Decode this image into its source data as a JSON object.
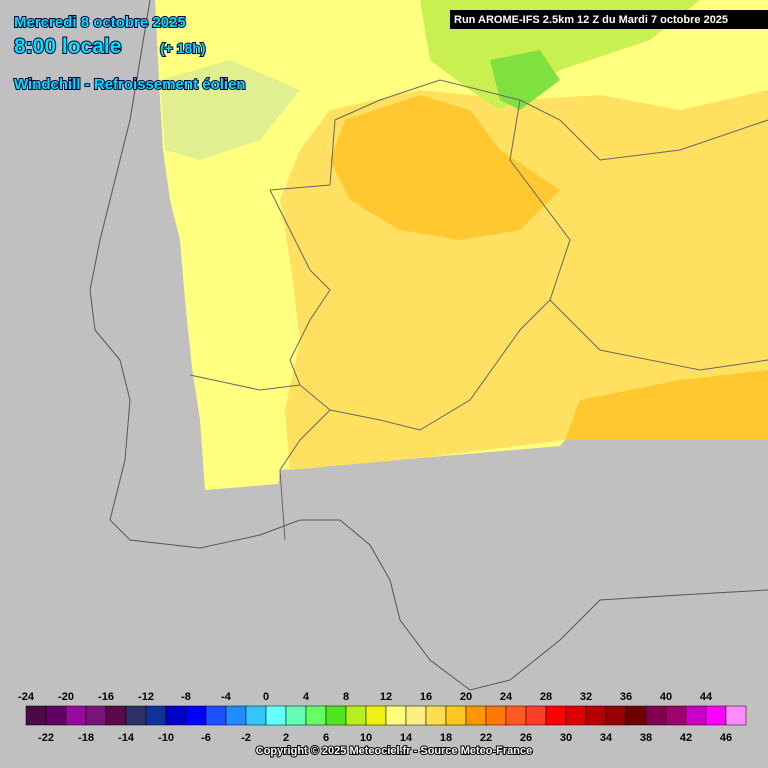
{
  "header": {
    "date": "Mercredi 8 octobre 2025",
    "time": "8:00 locale",
    "lead": "(+ 18h)",
    "parameter": "Windchill - Refroissement éolien"
  },
  "run_info": "Run AROME-IFS 2.5km 12 Z du Mardi 7 octobre 2025",
  "legend": {
    "labels_top": [
      -24,
      -20,
      -16,
      -12,
      -8,
      -4,
      0,
      4,
      8,
      12,
      16,
      20,
      24,
      28,
      32,
      36,
      40,
      44
    ],
    "labels_bottom": [
      -22,
      -18,
      -14,
      -10,
      -6,
      -2,
      2,
      6,
      10,
      14,
      18,
      22,
      26,
      30,
      34,
      38,
      42,
      46
    ],
    "colors": [
      "#4a0a46",
      "#640064",
      "#9a0a9a",
      "#7a1478",
      "#5a0a4a",
      "#303068",
      "#10309a",
      "#0000c8",
      "#0000ff",
      "#1e50ff",
      "#1e8cff",
      "#32c8ff",
      "#64ffff",
      "#64ffb4",
      "#64ff64",
      "#50e61e",
      "#b4f01e",
      "#f0f014",
      "#ffff78",
      "#ffee82",
      "#ffdc50",
      "#ffc81e",
      "#ff9600",
      "#ff7800",
      "#ff5a1e",
      "#ff3c28",
      "#ff0000",
      "#dc0000",
      "#b40000",
      "#960000",
      "#6e0000",
      "#82004e",
      "#a0006e",
      "#c800c8",
      "#ff00ff",
      "#ff8cff"
    ]
  },
  "footer": {
    "copyright": "Copyright © 2025 Meteociel.fr - Source Meteo-France"
  }
}
